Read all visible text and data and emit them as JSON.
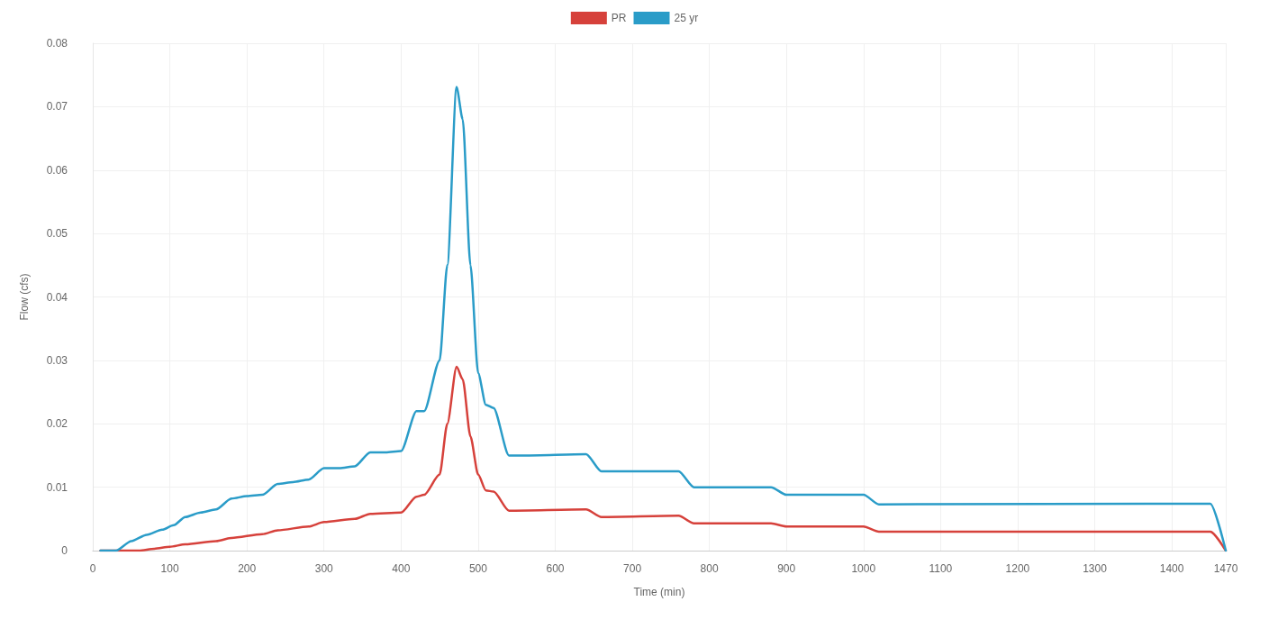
{
  "chart_data": {
    "type": "line",
    "xlabel": "Time (min)",
    "ylabel": "Flow (cfs)",
    "xlim": [
      0,
      1470
    ],
    "xticks": [
      0,
      100,
      200,
      300,
      400,
      500,
      600,
      700,
      800,
      900,
      1000,
      1100,
      1200,
      1300,
      1400,
      1470
    ],
    "ylim": [
      0,
      0.08
    ],
    "yticks": [
      0,
      0.01,
      0.02,
      0.03,
      0.04,
      0.05,
      0.06,
      0.07,
      0.08
    ],
    "grid": true,
    "legend": "top",
    "marker": "none",
    "line_style": "solid",
    "series": [
      {
        "name": "PR",
        "color": "#d6413b",
        "x": [
          10,
          60,
          80,
          100,
          120,
          160,
          180,
          220,
          240,
          280,
          300,
          340,
          360,
          400,
          420,
          430,
          450,
          460,
          472,
          480,
          490,
          500,
          510,
          520,
          540,
          640,
          660,
          760,
          780,
          880,
          900,
          1000,
          1020,
          1450,
          1470
        ],
        "values": [
          0,
          0,
          0.0003,
          0.0006,
          0.001,
          0.0015,
          0.002,
          0.0026,
          0.0032,
          0.0038,
          0.0045,
          0.005,
          0.0058,
          0.006,
          0.0085,
          0.0088,
          0.012,
          0.02,
          0.029,
          0.027,
          0.018,
          0.012,
          0.0095,
          0.0093,
          0.0063,
          0.0065,
          0.0053,
          0.0055,
          0.0043,
          0.0043,
          0.0038,
          0.0038,
          0.003,
          0.003,
          0
        ]
      },
      {
        "name": "25 yr",
        "color": "#2a9cc8",
        "x": [
          10,
          30,
          50,
          70,
          90,
          105,
          120,
          140,
          160,
          180,
          200,
          220,
          240,
          260,
          280,
          300,
          320,
          340,
          360,
          380,
          400,
          420,
          430,
          450,
          460,
          472,
          480,
          490,
          500,
          510,
          520,
          540,
          560,
          640,
          660,
          760,
          780,
          880,
          900,
          1000,
          1020,
          1450,
          1470
        ],
        "values": [
          0,
          0,
          0.0015,
          0.0025,
          0.0033,
          0.004,
          0.0053,
          0.006,
          0.0065,
          0.0082,
          0.0086,
          0.0088,
          0.0105,
          0.0108,
          0.0112,
          0.013,
          0.013,
          0.0133,
          0.0155,
          0.0155,
          0.0157,
          0.022,
          0.022,
          0.03,
          0.045,
          0.0731,
          0.068,
          0.045,
          0.028,
          0.023,
          0.0225,
          0.015,
          0.015,
          0.0152,
          0.0125,
          0.0125,
          0.01,
          0.01,
          0.0088,
          0.0088,
          0.0073,
          0.0074,
          0
        ]
      }
    ]
  }
}
